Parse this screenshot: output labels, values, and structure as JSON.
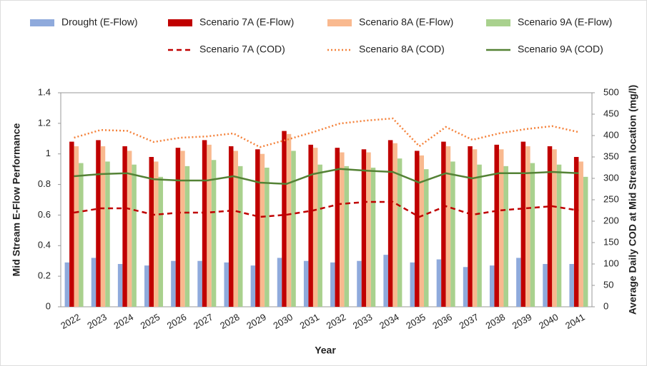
{
  "chart_data": {
    "type": "bar",
    "xlabel": "Year",
    "ylabel": "Mid Stream E-Flow Performance",
    "y2label": "Average Daily COD at Mid Stream location (mg/l)",
    "categories": [
      "2022",
      "2023",
      "2024",
      "2025",
      "2026",
      "2027",
      "2028",
      "2029",
      "2030",
      "2031",
      "2032",
      "2033",
      "2034",
      "2035",
      "2036",
      "2037",
      "2038",
      "2039",
      "2040",
      "2041"
    ],
    "ylim": [
      0,
      1.4
    ],
    "yticks": [
      0,
      0.2,
      0.4,
      0.6,
      0.8,
      1,
      1.2,
      1.4
    ],
    "y2lim": [
      0,
      500
    ],
    "y2ticks": [
      0,
      50,
      100,
      150,
      200,
      250,
      300,
      350,
      400,
      450,
      500
    ],
    "series": [
      {
        "name": "Drought (E-Flow)",
        "color": "#8faadc",
        "type": "bar",
        "values": [
          0.29,
          0.32,
          0.28,
          0.27,
          0.3,
          0.3,
          0.29,
          0.27,
          0.32,
          0.3,
          0.29,
          0.3,
          0.34,
          0.29,
          0.31,
          0.26,
          0.27,
          0.32,
          0.28,
          0.28
        ]
      },
      {
        "name": "Scenario 7A (E-Flow)",
        "color": "#c00000",
        "type": "bar",
        "values": [
          1.08,
          1.09,
          1.05,
          0.98,
          1.04,
          1.09,
          1.05,
          1.03,
          1.15,
          1.06,
          1.04,
          1.03,
          1.09,
          1.02,
          1.08,
          1.05,
          1.06,
          1.08,
          1.05,
          0.98
        ]
      },
      {
        "name": "Scenario 8A (E-Flow)",
        "color": "#f9b98f",
        "type": "bar",
        "values": [
          1.05,
          1.05,
          1.02,
          0.95,
          1.02,
          1.06,
          1.02,
          1.0,
          1.13,
          1.04,
          1.01,
          1.01,
          1.07,
          0.99,
          1.05,
          1.03,
          1.03,
          1.05,
          1.03,
          0.95
        ]
      },
      {
        "name": "Scenario 9A (E-Flow)",
        "color": "#a9d18e",
        "type": "bar",
        "values": [
          0.94,
          0.95,
          0.93,
          0.85,
          0.92,
          0.96,
          0.92,
          0.91,
          1.02,
          0.93,
          0.92,
          0.91,
          0.97,
          0.9,
          0.95,
          0.93,
          0.92,
          0.94,
          0.93,
          0.85
        ]
      },
      {
        "name": "Scenario 7A (COD)",
        "color": "#c00000",
        "type": "line",
        "dash": "dashed",
        "axis": "y2",
        "values": [
          220,
          230,
          230,
          215,
          220,
          220,
          225,
          210,
          215,
          225,
          240,
          245,
          245,
          210,
          235,
          215,
          225,
          230,
          235,
          225
        ]
      },
      {
        "name": "Scenario 8A (COD)",
        "color": "#f4823b",
        "type": "line",
        "dash": "dotted",
        "axis": "y2",
        "values": [
          395,
          413,
          411,
          385,
          395,
          398,
          405,
          373,
          390,
          408,
          428,
          435,
          440,
          375,
          420,
          390,
          405,
          415,
          422,
          408
        ]
      },
      {
        "name": "Scenario 9A (COD)",
        "color": "#548235",
        "type": "line",
        "dash": "solid",
        "axis": "y2",
        "values": [
          305,
          310,
          312,
          298,
          295,
          295,
          305,
          290,
          287,
          310,
          322,
          318,
          315,
          290,
          312,
          300,
          312,
          312,
          315,
          312
        ]
      }
    ]
  }
}
